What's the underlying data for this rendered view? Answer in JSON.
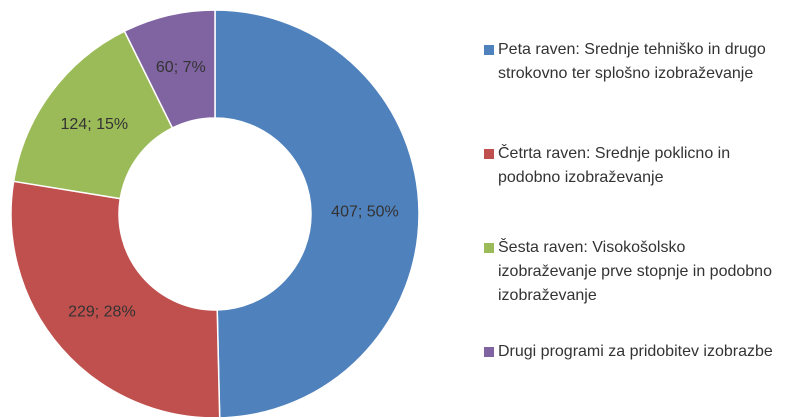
{
  "chart_data": {
    "type": "donut",
    "categories": [
      "Peta raven: Srednje tehniško in drugo strokovno ter splošno izobraževanje",
      "Četrta raven: Srednje poklicno in podobno izobraževanje",
      "Šesta raven: Visokošolsko izobraževanje prve stopnje in podobno izobraževanje",
      "Drugi programi za pridobitev izobrazbe"
    ],
    "values": [
      407,
      229,
      124,
      60
    ],
    "value_labels": [
      "407; 50%",
      "229; 28%",
      "124; 15%",
      "60; 7%"
    ],
    "colors": [
      "#4f81bd",
      "#c0504d",
      "#9bbb59",
      "#8064a2"
    ],
    "legend": "right"
  }
}
